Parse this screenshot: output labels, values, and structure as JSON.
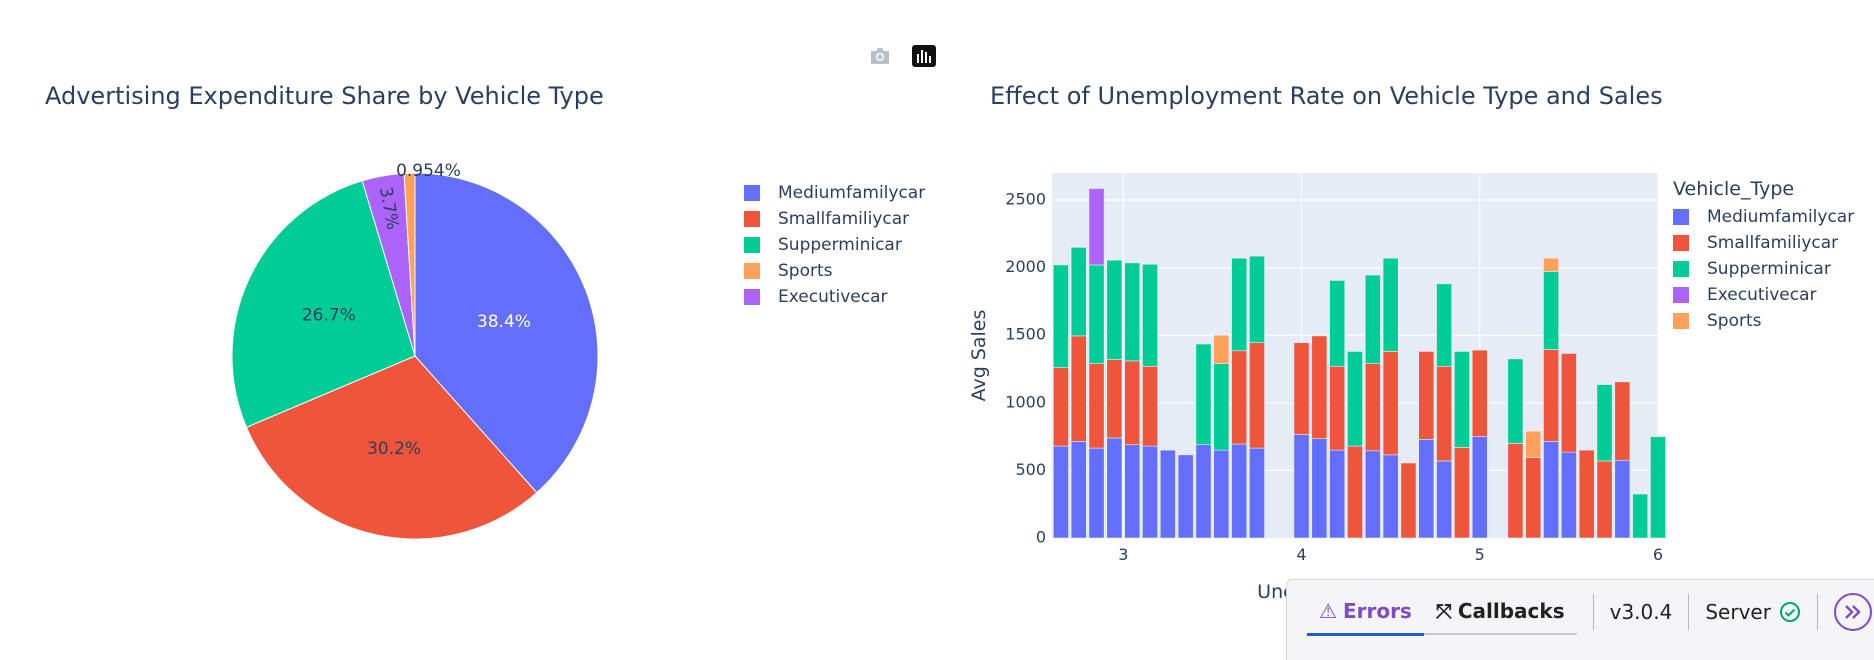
{
  "modebar": {
    "icons": [
      "camera-icon",
      "plotly-logo-icon"
    ]
  },
  "colors": {
    "Mediumfamilycar": "#636efa",
    "Smallfamiliycar": "#ef553b",
    "Supperminicar": "#00cc96",
    "Sports": "#ffa15a",
    "Executivecar": "#ab63fa",
    "text": "#2a3f5f",
    "plot_bg": "#e5ecf6"
  },
  "chart_data": [
    {
      "type": "pie",
      "title": "Advertising Expenditure Share by Vehicle Type",
      "labels": [
        "Mediumfamilycar",
        "Smallfamiliycar",
        "Supperminicar",
        "Executivecar",
        "Sports"
      ],
      "values": [
        38.4,
        30.2,
        26.7,
        3.7,
        0.954
      ],
      "text_labels": [
        "38.4%",
        "30.2%",
        "26.7%",
        "3.7%",
        "0.954%"
      ],
      "legend": [
        "Mediumfamilycar",
        "Smallfamiliycar",
        "Supperminicar",
        "Sports",
        "Executivecar"
      ],
      "legend_position": "right"
    },
    {
      "type": "bar",
      "barmode": "stack",
      "title": "Effect of Unemployment Rate on Vehicle Type and Sales",
      "xlabel": "Unemployment Rate",
      "ylabel": "Avg Sales",
      "xlim": [
        2.6,
        6.0
      ],
      "ylim": [
        0,
        2700
      ],
      "xticks": [
        3,
        4,
        5,
        6
      ],
      "yticks": [
        0,
        500,
        1000,
        1500,
        2000,
        2500
      ],
      "bar_width": 0.085,
      "legend_title": "Vehicle_Type",
      "legend": [
        "Mediumfamilycar",
        "Smallfamiliycar",
        "Supperminicar",
        "Executivecar",
        "Sports"
      ],
      "legend_position": "top-right",
      "bars": [
        {
          "x": 2.65,
          "Mediumfamilycar": 680,
          "Smallfamiliycar": 580,
          "Supperminicar": 760
        },
        {
          "x": 2.75,
          "Mediumfamilycar": 715,
          "Smallfamiliycar": 780,
          "Supperminicar": 655
        },
        {
          "x": 2.85,
          "Mediumfamilycar": 665,
          "Smallfamiliycar": 625,
          "Supperminicar": 730,
          "Executivecar": 565
        },
        {
          "x": 2.95,
          "Mediumfamilycar": 740,
          "Smallfamiliycar": 580,
          "Supperminicar": 735
        },
        {
          "x": 3.05,
          "Mediumfamilycar": 690,
          "Smallfamiliycar": 620,
          "Supperminicar": 725
        },
        {
          "x": 3.15,
          "Mediumfamilycar": 680,
          "Smallfamiliycar": 590,
          "Supperminicar": 755
        },
        {
          "x": 3.25,
          "Mediumfamilycar": 650
        },
        {
          "x": 3.35,
          "Mediumfamilycar": 615
        },
        {
          "x": 3.45,
          "Mediumfamilycar": 690,
          "Supperminicar": 745
        },
        {
          "x": 3.55,
          "Mediumfamilycar": 650,
          "Supperminicar": 640,
          "Sports": 210
        },
        {
          "x": 3.65,
          "Mediumfamilycar": 695,
          "Smallfamiliycar": 690,
          "Supperminicar": 685
        },
        {
          "x": 3.75,
          "Mediumfamilycar": 665,
          "Smallfamiliycar": 780,
          "Supperminicar": 640
        },
        {
          "x": 4.0,
          "Mediumfamilycar": 765,
          "Smallfamiliycar": 680
        },
        {
          "x": 4.1,
          "Mediumfamilycar": 735,
          "Smallfamiliycar": 760
        },
        {
          "x": 4.2,
          "Mediumfamilycar": 650,
          "Smallfamiliycar": 620,
          "Supperminicar": 635
        },
        {
          "x": 4.3,
          "Smallfamiliycar": 680,
          "Supperminicar": 700
        },
        {
          "x": 4.4,
          "Mediumfamilycar": 645,
          "Smallfamiliycar": 645,
          "Supperminicar": 655
        },
        {
          "x": 4.5,
          "Mediumfamilycar": 615,
          "Smallfamiliycar": 765,
          "Supperminicar": 690
        },
        {
          "x": 4.6,
          "Smallfamiliycar": 555
        },
        {
          "x": 4.7,
          "Mediumfamilycar": 730,
          "Smallfamiliycar": 650
        },
        {
          "x": 4.8,
          "Mediumfamilycar": 570,
          "Smallfamiliycar": 700,
          "Supperminicar": 610
        },
        {
          "x": 4.9,
          "Smallfamiliycar": 670,
          "Supperminicar": 710
        },
        {
          "x": 5.0,
          "Mediumfamilycar": 750,
          "Smallfamiliycar": 640
        },
        {
          "x": 5.2,
          "Smallfamiliycar": 700,
          "Supperminicar": 625
        },
        {
          "x": 5.3,
          "Smallfamiliycar": 595,
          "Sports": 195
        },
        {
          "x": 5.4,
          "Mediumfamilycar": 715,
          "Smallfamiliycar": 680,
          "Supperminicar": 575,
          "Sports": 100
        },
        {
          "x": 5.5,
          "Mediumfamilycar": 635,
          "Smallfamiliycar": 730
        },
        {
          "x": 5.6,
          "Smallfamiliycar": 650
        },
        {
          "x": 5.7,
          "Smallfamiliycar": 570,
          "Supperminicar": 565
        },
        {
          "x": 5.8,
          "Mediumfamilycar": 575,
          "Smallfamiliycar": 580
        },
        {
          "x": 5.9,
          "Supperminicar": 325
        },
        {
          "x": 6.0,
          "Supperminicar": 750
        }
      ]
    }
  ],
  "devtools": {
    "errors_label": "Errors",
    "callbacks_label": "Callbacks",
    "version": "v3.0.4",
    "server_label": "Server"
  }
}
